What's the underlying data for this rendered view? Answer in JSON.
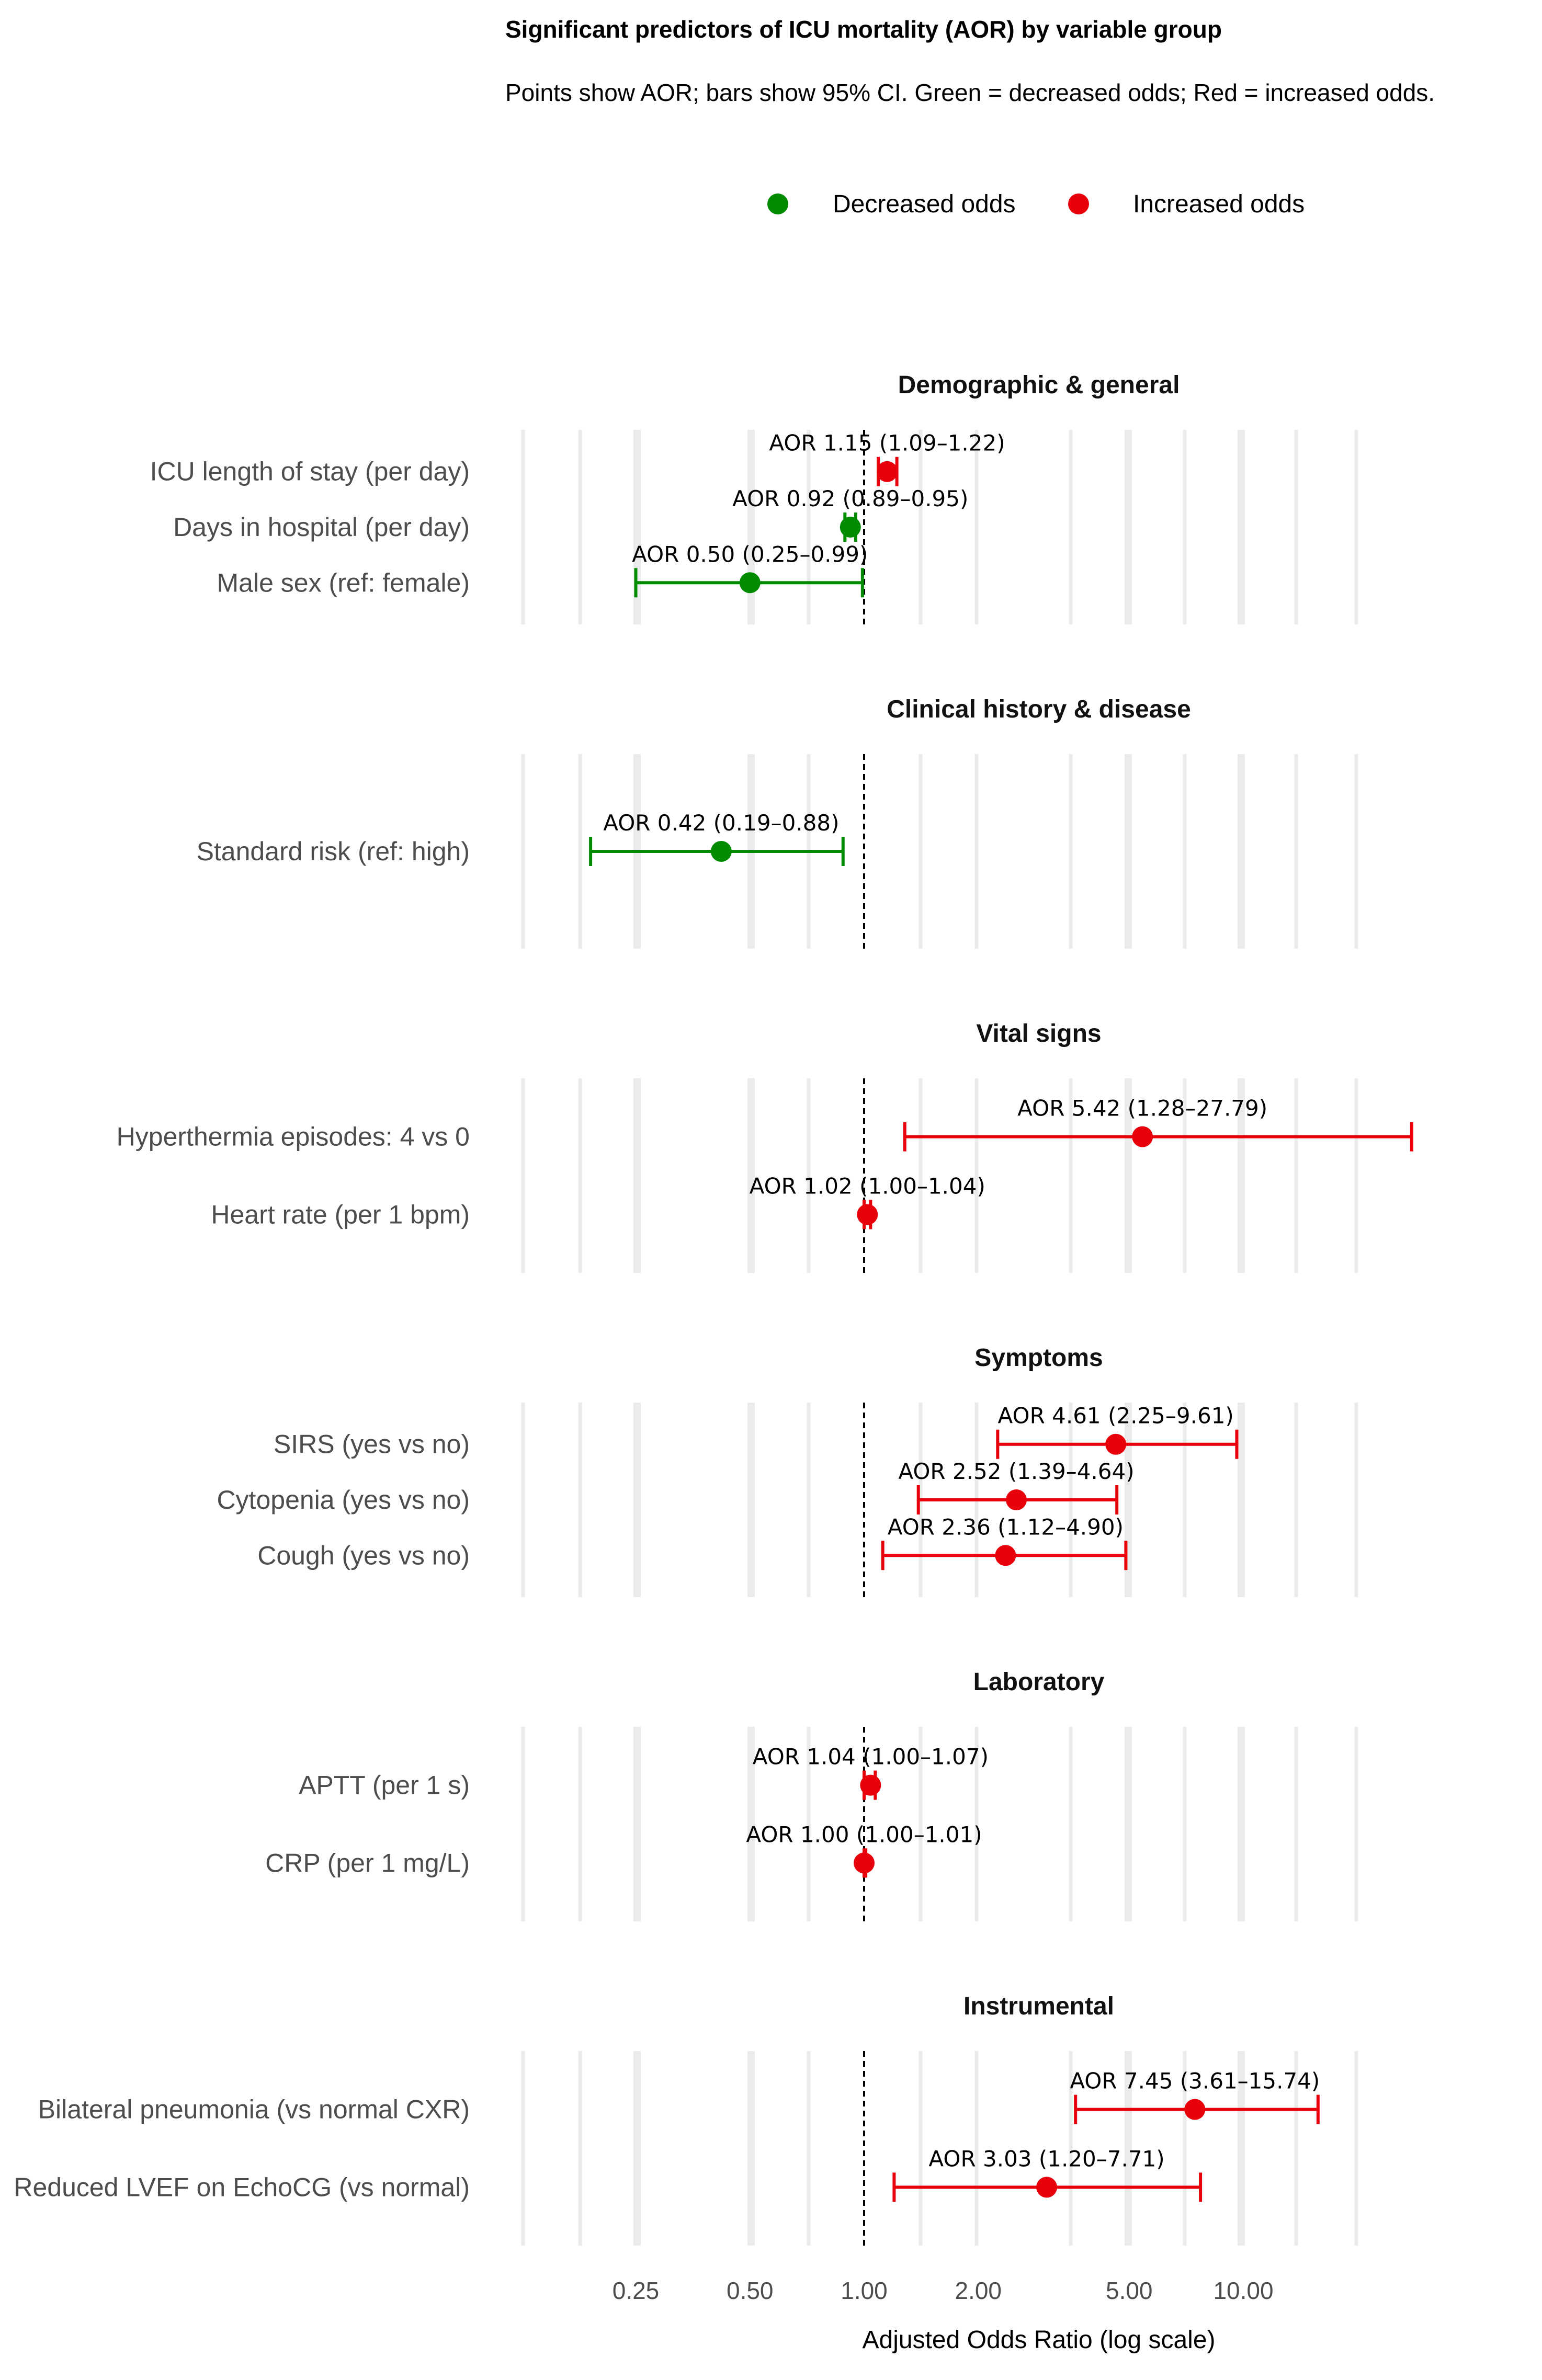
{
  "chart_data": {
    "type": "forest",
    "title": "Significant predictors of ICU mortality (AOR) by variable group",
    "subtitle": "Points show AOR; bars show 95% CI. Green = decreased odds; Red = increased odds.",
    "xlabel": "Adjusted Odds Ratio (log scale)",
    "x_scale": "log",
    "xlim": [
      0.15,
      20
    ],
    "x_ticks": [
      {
        "value": 0.25,
        "label": "0.25"
      },
      {
        "value": 0.5,
        "label": "0.50"
      },
      {
        "value": 1,
        "label": "1.00"
      },
      {
        "value": 2,
        "label": "2.00"
      },
      {
        "value": 5,
        "label": "5.00"
      },
      {
        "value": 10,
        "label": "10.00"
      }
    ],
    "reference_line": 1,
    "legend": {
      "position": "top",
      "entries": [
        {
          "key": "decreased",
          "label": "Decreased odds",
          "color": "#008b00"
        },
        {
          "key": "increased",
          "label": "Increased odds",
          "color": "#e8000b"
        }
      ]
    },
    "groups": [
      {
        "title": "Demographic & general",
        "rows": [
          {
            "label": "ICU length of stay (per day)",
            "aor": 1.15,
            "lo": 1.09,
            "hi": 1.22,
            "direction": "increased",
            "text": "AOR 1.15 (1.09–1.22)"
          },
          {
            "label": "Days in hospital (per day)",
            "aor": 0.92,
            "lo": 0.89,
            "hi": 0.95,
            "direction": "decreased",
            "text": "AOR 0.92 (0.89–0.95)"
          },
          {
            "label": "Male sex (ref: female)",
            "aor": 0.5,
            "lo": 0.25,
            "hi": 0.99,
            "direction": "decreased",
            "text": "AOR 0.50 (0.25–0.99)"
          }
        ]
      },
      {
        "title": "Clinical history & disease",
        "rows": [
          {
            "label": "Standard risk (ref: high)",
            "aor": 0.42,
            "lo": 0.19,
            "hi": 0.88,
            "direction": "decreased",
            "text": "AOR 0.42 (0.19–0.88)"
          }
        ]
      },
      {
        "title": "Vital signs",
        "rows": [
          {
            "label": "Hyperthermia episodes: 4 vs 0",
            "aor": 5.42,
            "lo": 1.28,
            "hi": 27.79,
            "direction": "increased",
            "text": "AOR 5.42 (1.28–27.79)"
          },
          {
            "label": "Heart rate (per 1 bpm)",
            "aor": 1.02,
            "lo": 1.0,
            "hi": 1.04,
            "direction": "increased",
            "text": "AOR 1.02 (1.00–1.04)"
          }
        ]
      },
      {
        "title": "Symptoms",
        "rows": [
          {
            "label": "SIRS (yes vs no)",
            "aor": 4.61,
            "lo": 2.25,
            "hi": 9.61,
            "direction": "increased",
            "text": "AOR 4.61 (2.25–9.61)"
          },
          {
            "label": "Cytopenia (yes vs no)",
            "aor": 2.52,
            "lo": 1.39,
            "hi": 4.64,
            "direction": "increased",
            "text": "AOR 2.52 (1.39–4.64)"
          },
          {
            "label": "Cough (yes vs no)",
            "aor": 2.36,
            "lo": 1.12,
            "hi": 4.9,
            "direction": "increased",
            "text": "AOR 2.36 (1.12–4.90)"
          }
        ]
      },
      {
        "title": "Laboratory",
        "rows": [
          {
            "label": "APTT (per 1 s)",
            "aor": 1.04,
            "lo": 1.0,
            "hi": 1.07,
            "direction": "increased",
            "text": "AOR 1.04 (1.00–1.07)"
          },
          {
            "label": "CRP (per 1 mg/L)",
            "aor": 1.0,
            "lo": 1.0,
            "hi": 1.01,
            "direction": "increased",
            "text": "AOR 1.00 (1.00–1.01)"
          }
        ]
      },
      {
        "title": "Instrumental",
        "rows": [
          {
            "label": "Bilateral pneumonia (vs normal CXR)",
            "aor": 7.45,
            "lo": 3.61,
            "hi": 15.74,
            "direction": "increased",
            "text": "AOR 7.45 (3.61–15.74)"
          },
          {
            "label": "Reduced LVEF on EchoCG (vs normal)",
            "aor": 3.03,
            "lo": 1.2,
            "hi": 7.71,
            "direction": "increased",
            "text": "AOR 3.03 (1.20–7.71)"
          }
        ]
      }
    ]
  }
}
